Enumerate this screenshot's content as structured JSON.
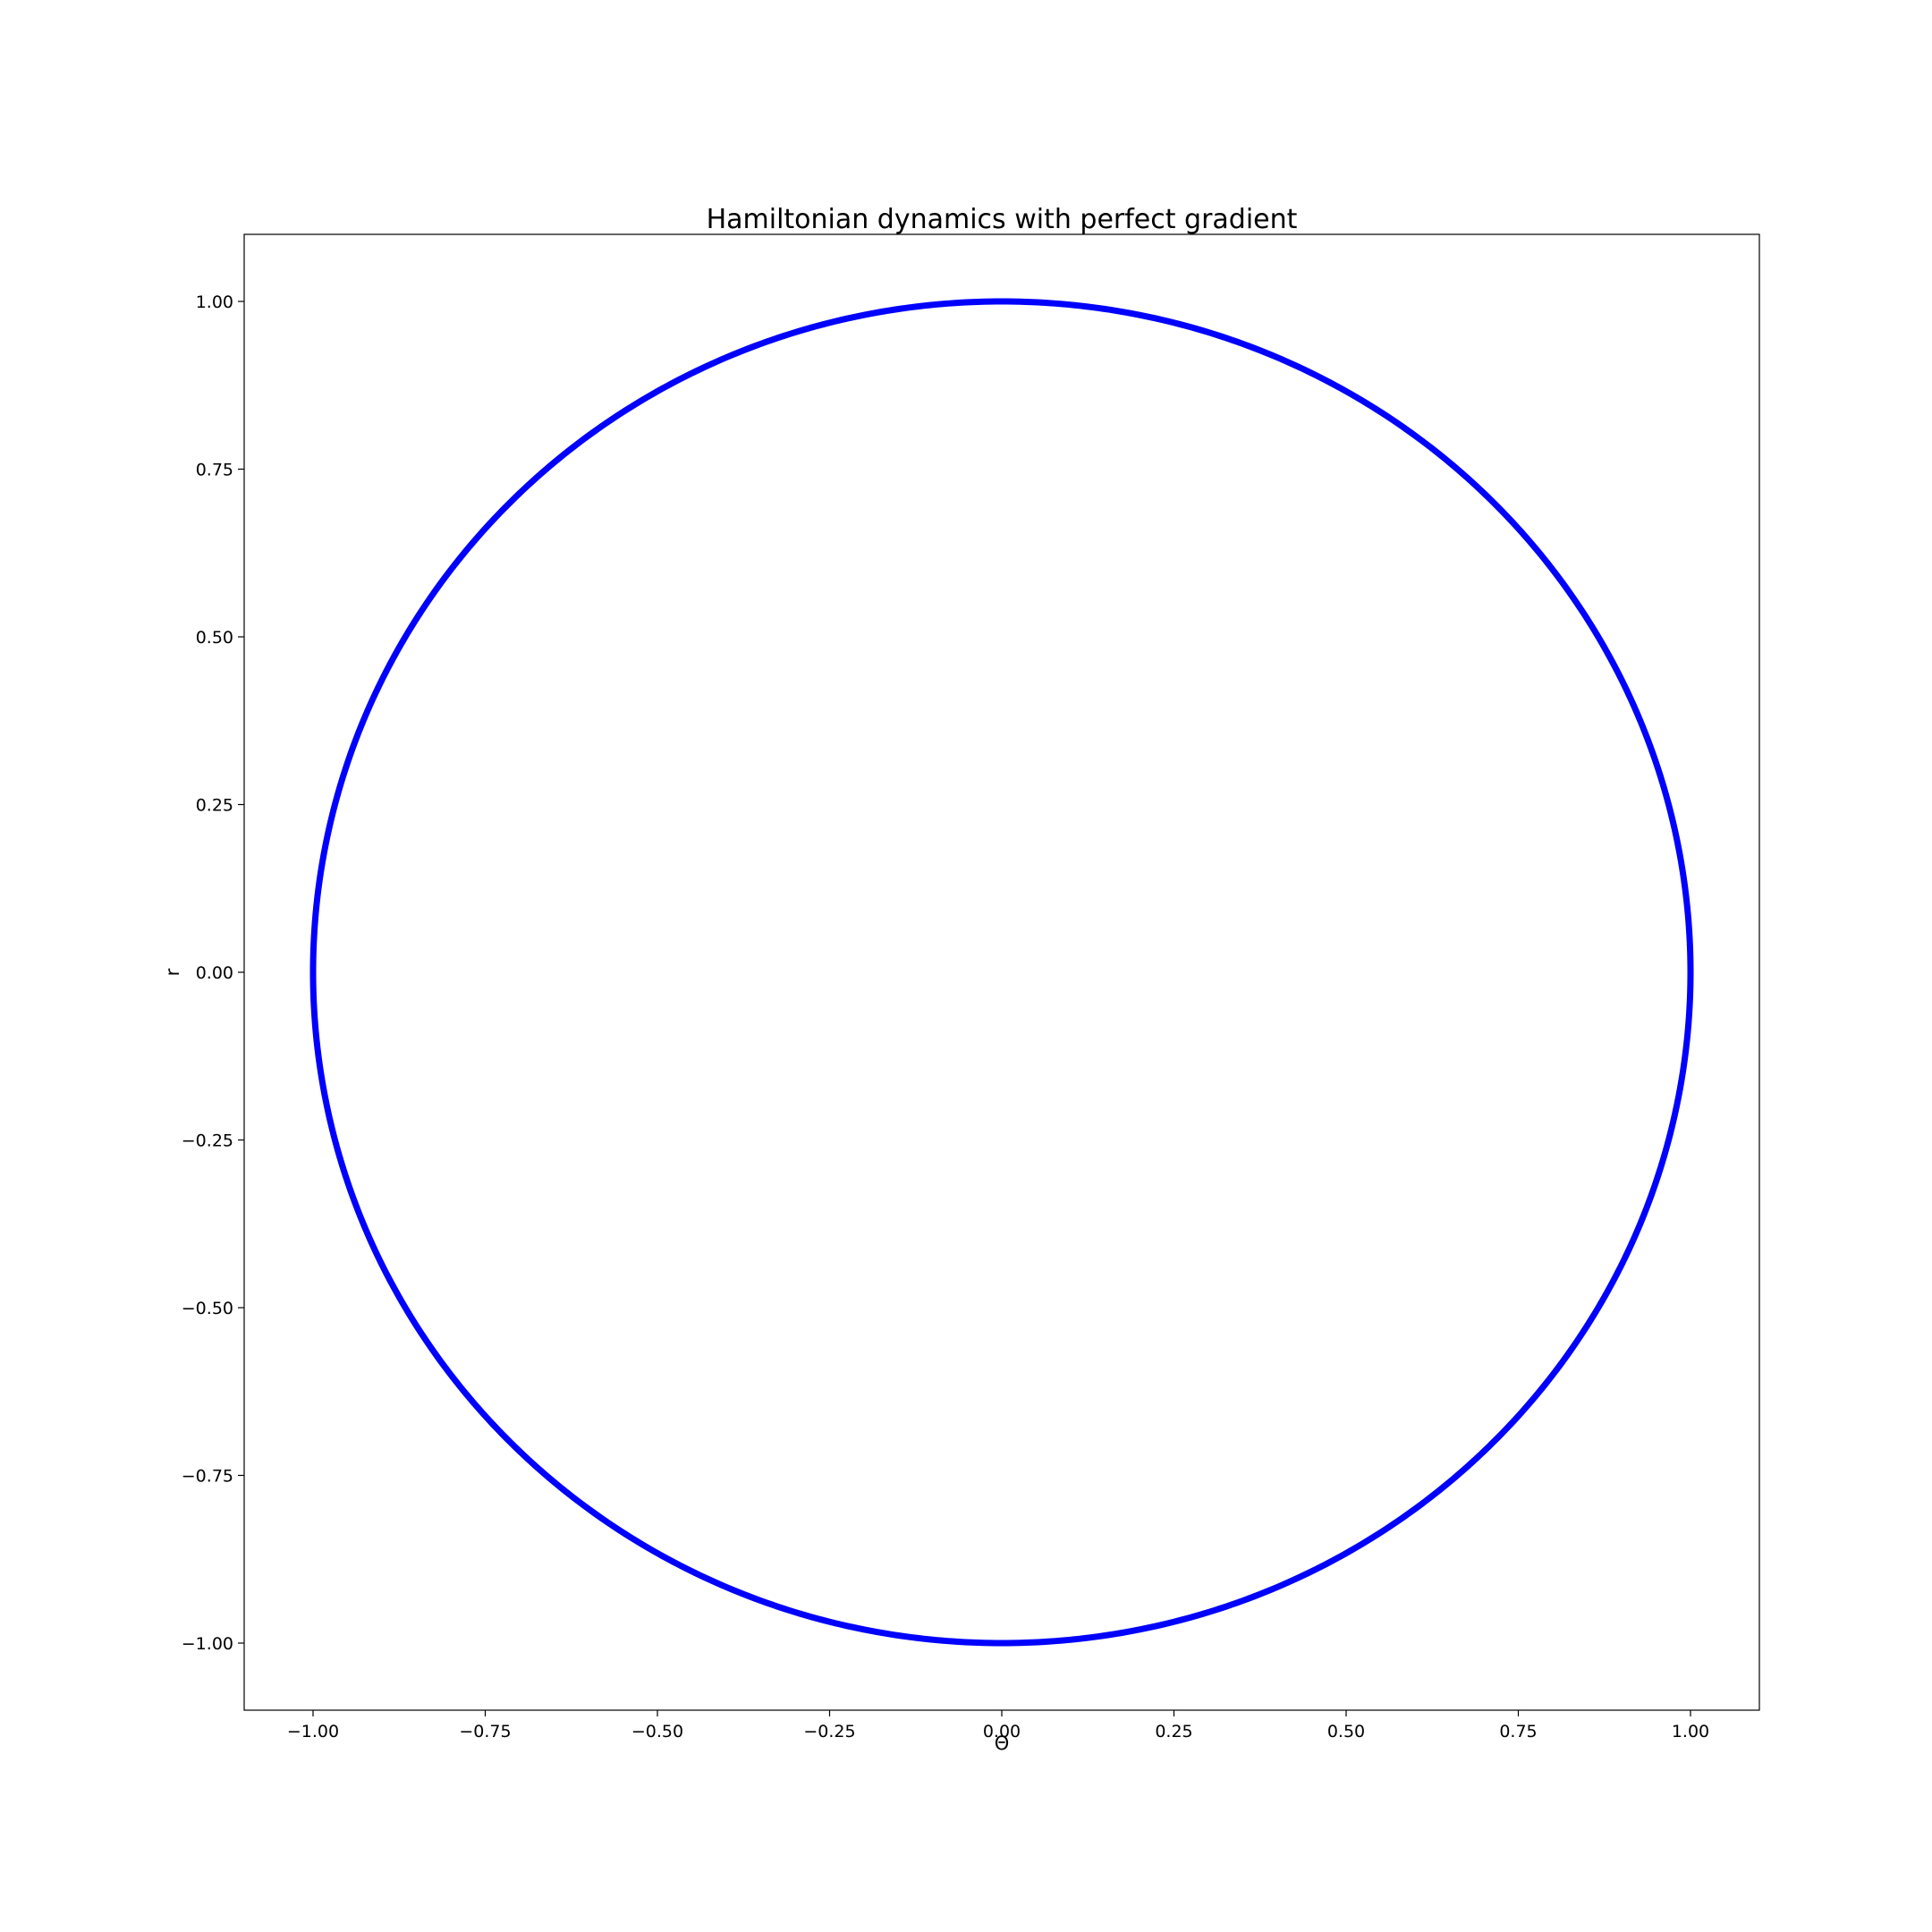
{
  "chart_data": {
    "type": "line",
    "title": "Hamiltonian dynamics with perfect gradient",
    "xlabel": "Θ",
    "ylabel": "r",
    "xlim": [
      -1.1,
      1.1
    ],
    "ylim": [
      -1.1,
      1.1
    ],
    "xticks": [
      -1.0,
      -0.75,
      -0.5,
      -0.25,
      0.0,
      0.25,
      0.5,
      0.75,
      1.0
    ],
    "yticks": [
      -1.0,
      -0.75,
      -0.5,
      -0.25,
      0.0,
      0.25,
      0.5,
      0.75,
      1.0
    ],
    "xtick_labels": [
      "−1.00",
      "−0.75",
      "−0.50",
      "−0.25",
      "0.00",
      "0.25",
      "0.50",
      "0.75",
      "1.00"
    ],
    "ytick_labels": [
      "−1.00",
      "−0.75",
      "−0.50",
      "−0.25",
      "0.00",
      "0.25",
      "0.50",
      "0.75",
      "1.00"
    ],
    "grid": false,
    "legend": "none",
    "series": [
      {
        "color": "#0000ff",
        "shape": "circle",
        "center": [
          0.0,
          0.0
        ],
        "radius": 1.0,
        "theta_range": [
          0,
          6.283185
        ]
      }
    ]
  }
}
